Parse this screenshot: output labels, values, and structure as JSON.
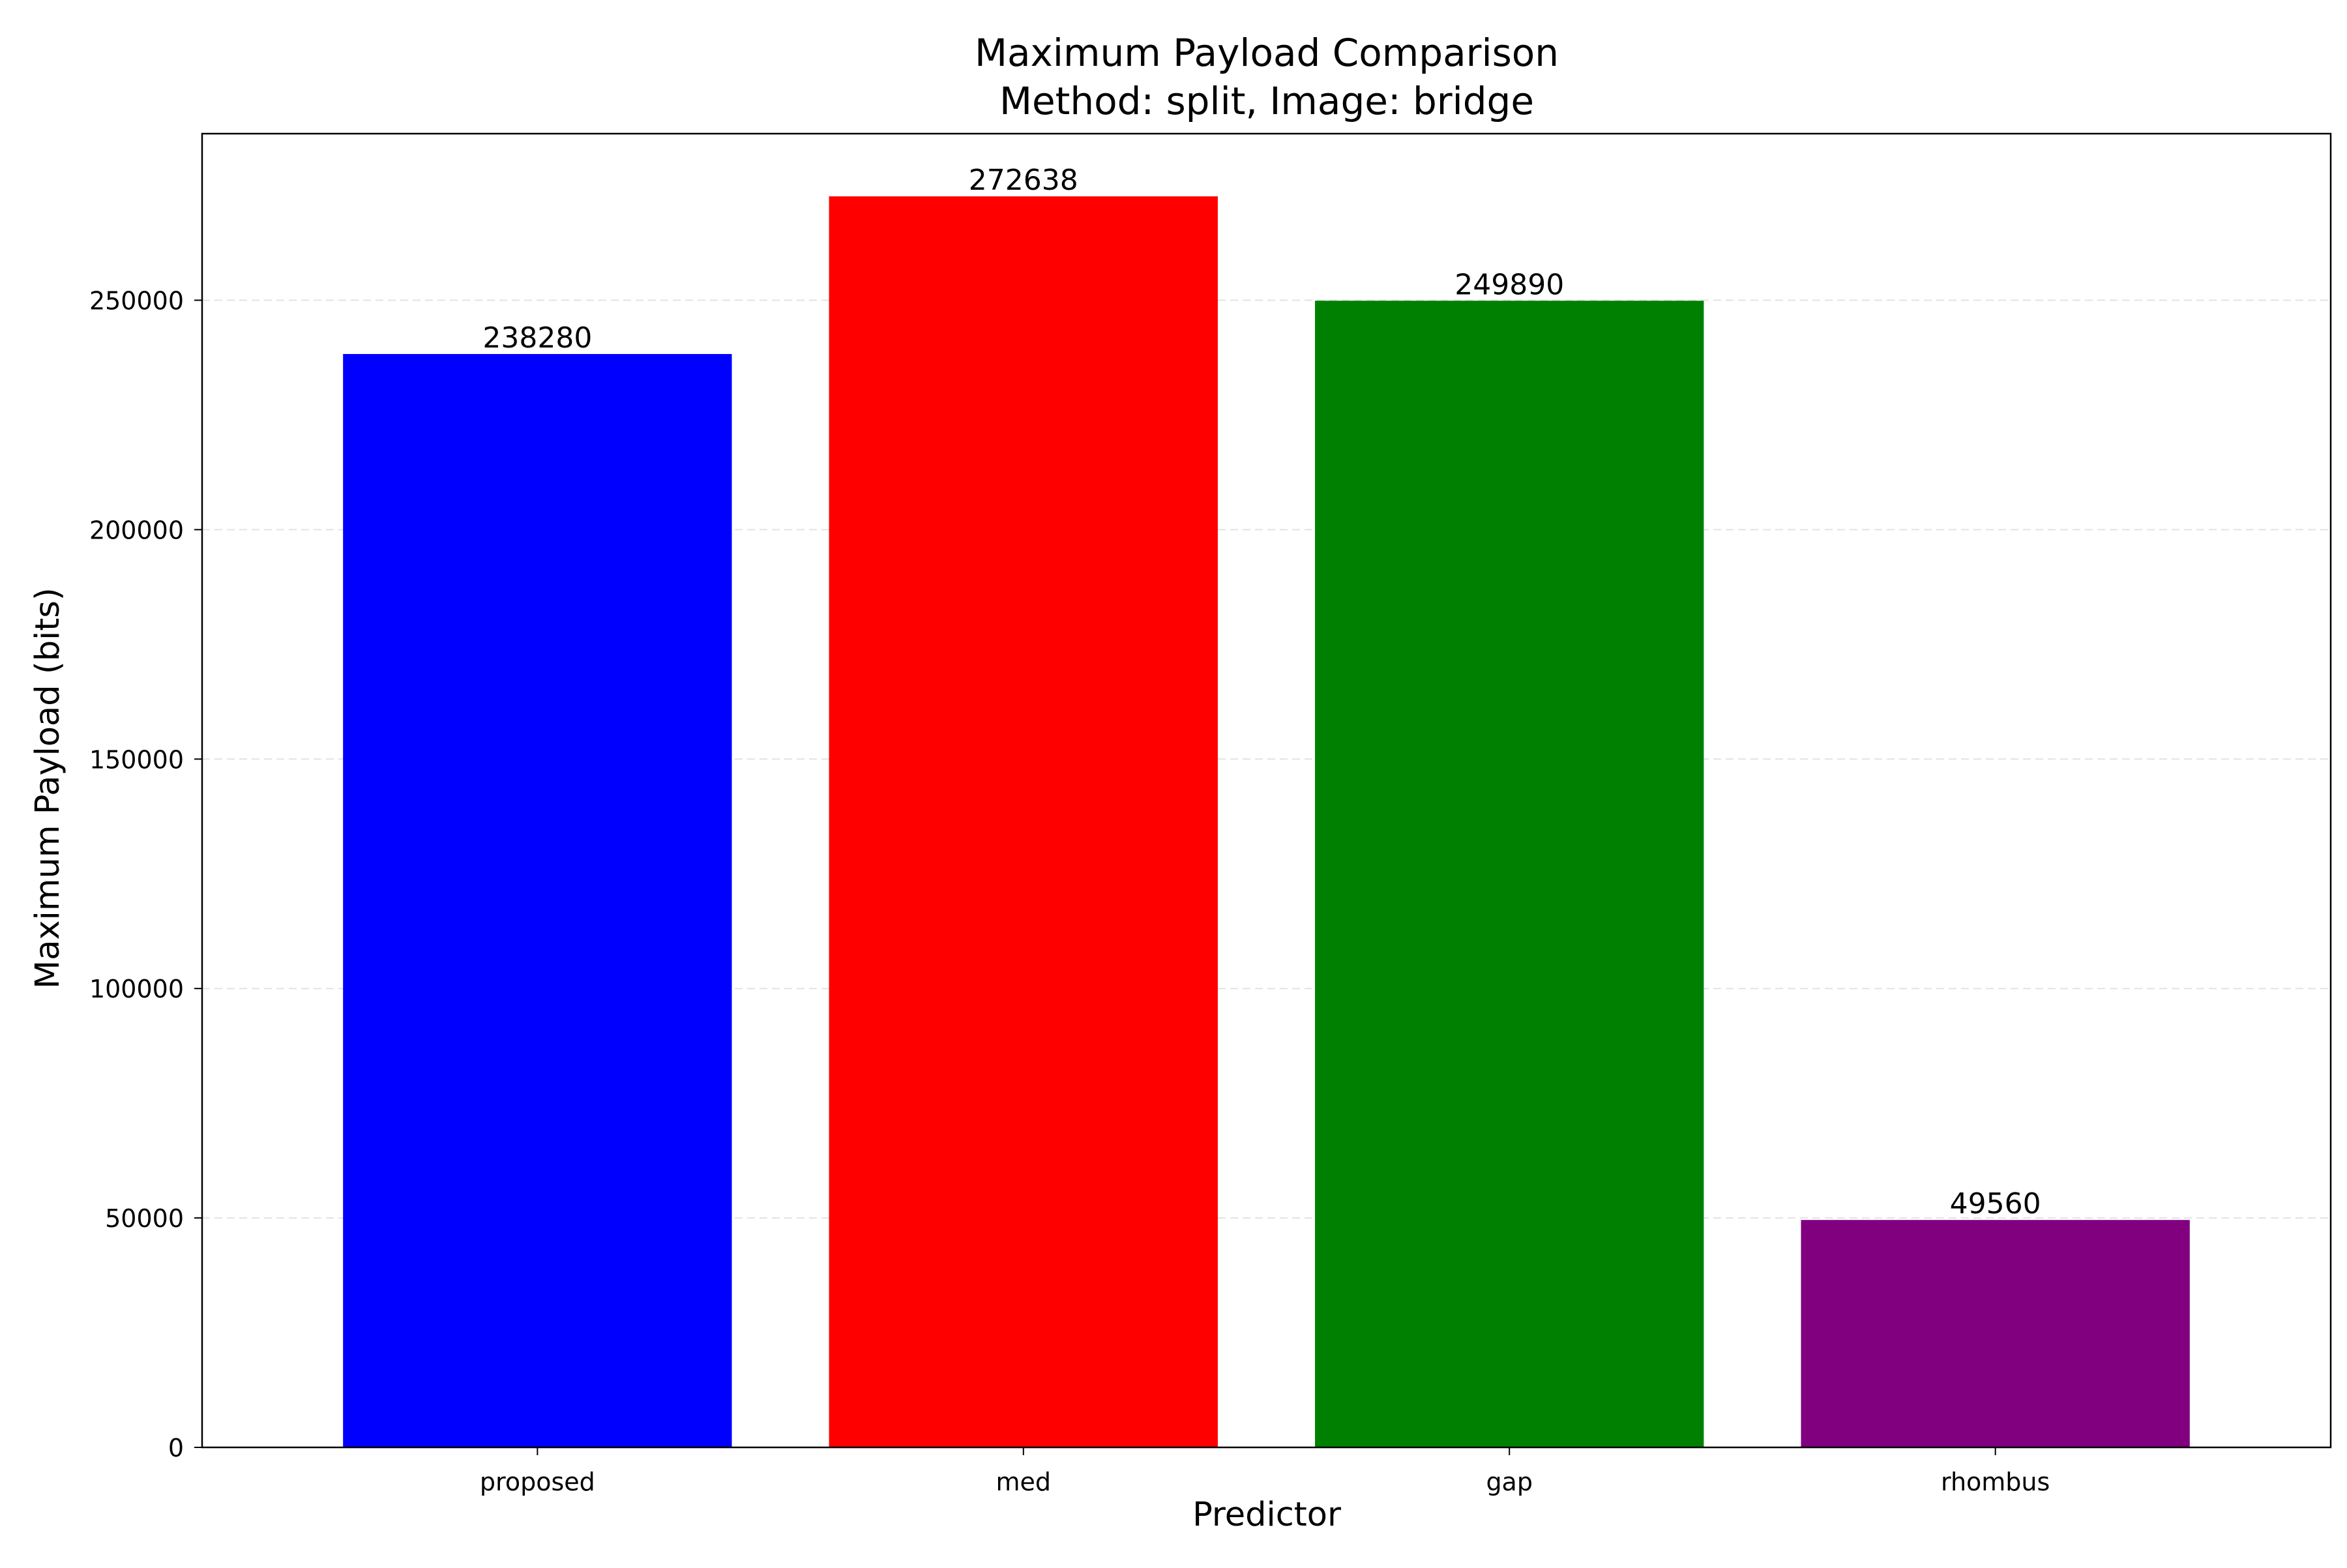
{
  "chart_data": {
    "type": "bar",
    "title": "Maximum Payload Comparison",
    "subtitle": "Method: split, Image: bridge",
    "xlabel": "Predictor",
    "ylabel": "Maximum Payload (bits)",
    "categories": [
      "proposed",
      "med",
      "gap",
      "rhombus"
    ],
    "values": [
      238280,
      272638,
      249890,
      49560
    ],
    "data_labels": [
      "238280",
      "272638",
      "249890",
      "49560"
    ],
    "colors": [
      "#0000ff",
      "#ff0000",
      "#008000",
      "#800080"
    ],
    "ylim": [
      0,
      286300
    ],
    "yticks": [
      0,
      50000,
      100000,
      150000,
      200000,
      250000
    ],
    "ytick_labels": [
      "0",
      "50000",
      "100000",
      "150000",
      "200000",
      "250000"
    ],
    "grid": "y-dashed",
    "legend": "none"
  }
}
